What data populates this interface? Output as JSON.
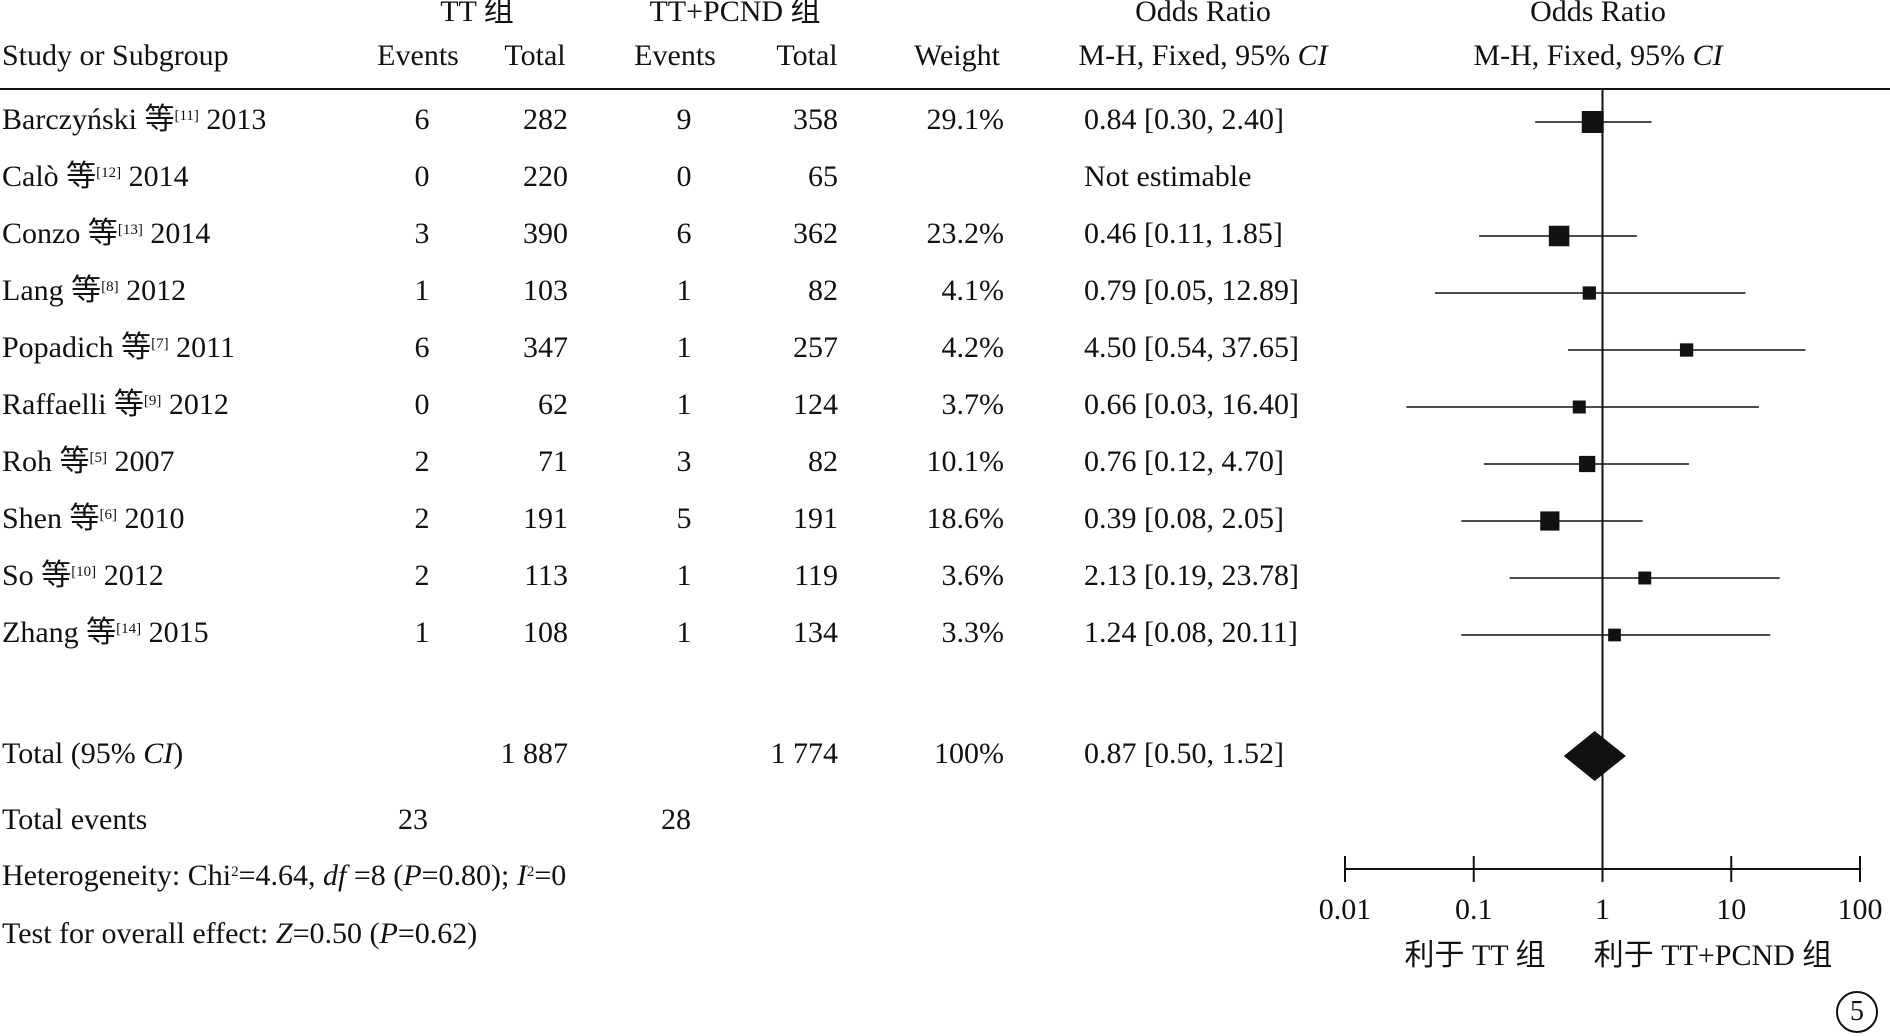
{
  "header": {
    "group1_name": "TT 组",
    "group2_name": "TT+PCND 组",
    "or_title": "Odds Ratio",
    "study_col": "Study or Subgroup",
    "events": "Events",
    "total": "Total",
    "weight": "Weight",
    "method_prefix": "M-H, Fixed, 95% ",
    "method_ci": "CI"
  },
  "studies": [
    {
      "author": "Barczyński 等",
      "ref": "[11]",
      "year": "2013",
      "e1": "6",
      "n1": "282",
      "e2": "9",
      "n2": "358",
      "weight": "29.1%",
      "or_text": "0.84 [0.30, 2.40]"
    },
    {
      "author": "Calò 等",
      "ref": "[12]",
      "year": "2014",
      "e1": "0",
      "n1": "220",
      "e2": "0",
      "n2": "65",
      "weight": "",
      "or_text": "Not estimable"
    },
    {
      "author": "Conzo 等",
      "ref": "[13]",
      "year": "2014",
      "e1": "3",
      "n1": "390",
      "e2": "6",
      "n2": "362",
      "weight": "23.2%",
      "or_text": "0.46 [0.11, 1.85]"
    },
    {
      "author": "Lang 等",
      "ref": "[8]",
      "year": "2012",
      "e1": "1",
      "n1": "103",
      "e2": "1",
      "n2": "82",
      "weight": "4.1%",
      "or_text": "0.79 [0.05, 12.89]"
    },
    {
      "author": "Popadich 等",
      "ref": "[7]",
      "year": "2011",
      "e1": "6",
      "n1": "347",
      "e2": "1",
      "n2": "257",
      "weight": "4.2%",
      "or_text": "4.50 [0.54, 37.65]"
    },
    {
      "author": "Raffaelli 等",
      "ref": "[9]",
      "year": "2012",
      "e1": "0",
      "n1": "62",
      "e2": "1",
      "n2": "124",
      "weight": "3.7%",
      "or_text": "0.66 [0.03, 16.40]"
    },
    {
      "author": "Roh 等",
      "ref": "[5]",
      "year": "2007",
      "e1": "2",
      "n1": "71",
      "e2": "3",
      "n2": "82",
      "weight": "10.1%",
      "or_text": "0.76 [0.12, 4.70]"
    },
    {
      "author": "Shen 等",
      "ref": "[6]",
      "year": "2010",
      "e1": "2",
      "n1": "191",
      "e2": "5",
      "n2": "191",
      "weight": "18.6%",
      "or_text": "0.39 [0.08, 2.05]"
    },
    {
      "author": "So 等",
      "ref": "[10]",
      "year": "2012",
      "e1": "2",
      "n1": "113",
      "e2": "1",
      "n2": "119",
      "weight": "3.6%",
      "or_text": "2.13 [0.19, 23.78]"
    },
    {
      "author": "Zhang 等",
      "ref": "[14]",
      "year": "2015",
      "e1": "1",
      "n1": "108",
      "e2": "1",
      "n2": "134",
      "weight": "3.3%",
      "or_text": "1.24 [0.08, 20.11]"
    }
  ],
  "total_row": {
    "label_prefix": "Total (95% ",
    "label_ci": "CI",
    "label_suffix": ")",
    "n1": "1 887",
    "n2": "1 774",
    "weight": "100%",
    "or_text": "0.87 [0.50, 1.52]"
  },
  "total_events": {
    "label": "Total events",
    "e1": "23",
    "e2": "28"
  },
  "heterogeneity": {
    "prefix": "Heterogeneity: Chi",
    "sup2": "2",
    "chi_value": "=4.64, ",
    "df_label": "df",
    "df_value": " =8 (",
    "p_label": "P",
    "p_value": "=0.80); ",
    "i_label": "I",
    "i_sup": "2",
    "i_value": "=0"
  },
  "overall_effect": {
    "prefix": "Test for overall effect: ",
    "z_label": "Z",
    "z_value": "=0.50 (",
    "p_label": "P",
    "p_value": "=0.62)"
  },
  "favours": {
    "left": "利于 TT 组",
    "right": "利于 TT+PCND 组"
  },
  "figure_number": "5",
  "chart_data": {
    "type": "forest",
    "scale": "log",
    "xlim": [
      0.01,
      100
    ],
    "ticks": [
      0.01,
      0.1,
      1,
      10,
      100
    ],
    "tick_labels": [
      "0.01",
      "0.1",
      "1",
      "10",
      "100"
    ],
    "reference_line": 1,
    "studies": [
      {
        "or": 0.84,
        "lo": 0.3,
        "hi": 2.4,
        "weight": 29.1
      },
      {
        "or": null,
        "lo": null,
        "hi": null,
        "weight": null
      },
      {
        "or": 0.46,
        "lo": 0.11,
        "hi": 1.85,
        "weight": 23.2
      },
      {
        "or": 0.79,
        "lo": 0.05,
        "hi": 12.89,
        "weight": 4.1
      },
      {
        "or": 4.5,
        "lo": 0.54,
        "hi": 37.65,
        "weight": 4.2
      },
      {
        "or": 0.66,
        "lo": 0.03,
        "hi": 16.4,
        "weight": 3.7
      },
      {
        "or": 0.76,
        "lo": 0.12,
        "hi": 4.7,
        "weight": 10.1
      },
      {
        "or": 0.39,
        "lo": 0.08,
        "hi": 2.05,
        "weight": 18.6
      },
      {
        "or": 2.13,
        "lo": 0.19,
        "hi": 23.78,
        "weight": 3.6
      },
      {
        "or": 1.24,
        "lo": 0.08,
        "hi": 20.11,
        "weight": 3.3
      }
    ],
    "pooled": {
      "or": 0.87,
      "lo": 0.5,
      "hi": 1.52
    }
  }
}
